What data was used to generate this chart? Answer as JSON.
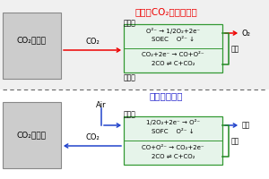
{
  "title_charge": "充電（CO₂電気分解）",
  "title_discharge": "放電（発電）",
  "tank_label_line1": "CO₂タンク",
  "co2_label": "CO₂",
  "air_label": "Air",
  "o2_label": "O₂",
  "haikei_label": "排気",
  "denryoku_label": "電力",
  "kuuki_label": "空気極",
  "nenryo_label": "燃料極",
  "charge_line1": "O²⁻ → 1/2O₂+2e⁻",
  "charge_line2": "SOEC    O²⁻ ↓",
  "charge_line3": "CO₂+2e⁻ → CO+O²⁻",
  "charge_line4": "2CO ⇌ C+CO₂",
  "discharge_line1": "1/2O₂+2e⁻ → O²⁻",
  "discharge_line2": "SOFC    O²⁻ ↓",
  "discharge_line3": "CO+O²⁻ → CO₂+2e⁻",
  "discharge_line4": "2CO ⇌ C+CO₂",
  "bg_top": "#f0f0f0",
  "bg_bot": "#ffffff",
  "tank_bg": "#cccccc",
  "tank_border": "#888888",
  "box_bg": "#e6f4ea",
  "box_border": "#339933",
  "title_charge_color": "#ee0000",
  "title_discharge_color": "#2222cc",
  "red": "#ee0000",
  "blue": "#2244cc",
  "green": "#228822",
  "black": "#000000",
  "dash_color": "#666666"
}
